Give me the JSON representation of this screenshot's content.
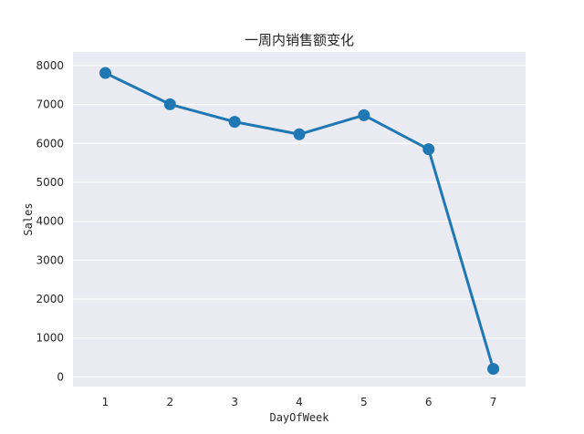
{
  "chart_data": {
    "type": "line",
    "title": "一周内销售额变化",
    "xlabel": "DayOfWeek",
    "ylabel": "Sales",
    "categories": [
      "1",
      "2",
      "3",
      "4",
      "5",
      "6",
      "7"
    ],
    "series": [
      {
        "values": [
          7810,
          7005,
          6555,
          6235,
          6725,
          5850,
          205
        ]
      }
    ],
    "yticks": [
      0,
      1000,
      2000,
      3000,
      4000,
      5000,
      6000,
      7000,
      8000
    ],
    "ylim": [
      -250,
      8350
    ],
    "grid": "horizontal",
    "background_color": "#eaeaf2",
    "line_color": "#1f77b4",
    "marker": "circle"
  }
}
